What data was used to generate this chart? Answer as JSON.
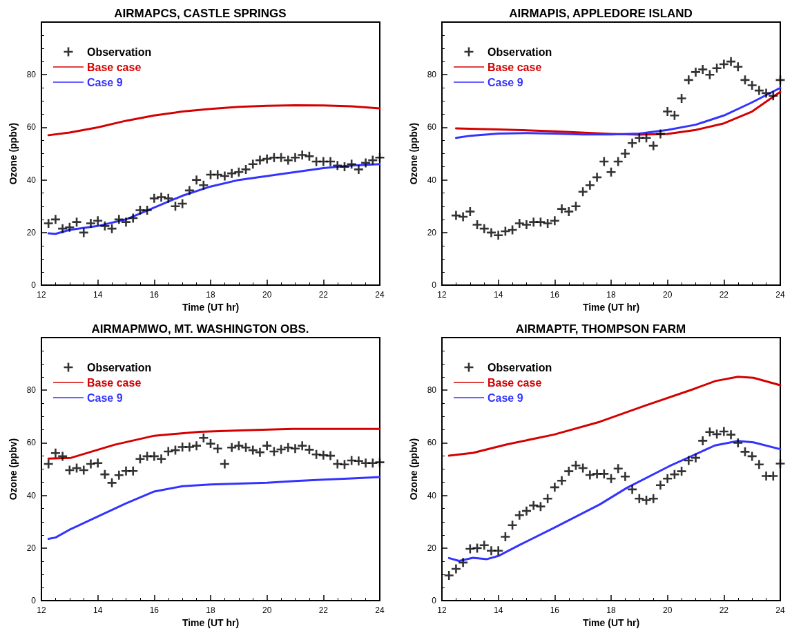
{
  "chart_data": [
    {
      "type": "line",
      "title": "AIRMAPCS, CASTLE SPRINGS",
      "xlabel": "Time (UT hr)",
      "ylabel": "Ozone (ppbv)",
      "xlim": [
        12,
        24
      ],
      "xticks": [
        12,
        14,
        16,
        18,
        20,
        22,
        24
      ],
      "ylim": [
        0,
        100
      ],
      "yticks": [
        0,
        20,
        40,
        60,
        80
      ],
      "legend": "top left",
      "grid": false,
      "series": [
        {
          "name": "Observation",
          "type": "scatter",
          "marker": "cross",
          "color": "#000000",
          "x": [
            12.25,
            12.5,
            12.75,
            13,
            13.25,
            13.5,
            13.75,
            14,
            14.25,
            14.5,
            14.75,
            15,
            15.25,
            15.5,
            15.75,
            16,
            16.25,
            16.5,
            16.75,
            17,
            17.25,
            17.5,
            17.75,
            18,
            18.25,
            18.5,
            18.75,
            19,
            19.25,
            19.5,
            19.75,
            20,
            20.25,
            20.5,
            20.75,
            21,
            21.25,
            21.5,
            21.75,
            22,
            22.25,
            22.5,
            22.75,
            23,
            23.25,
            23.5,
            23.75,
            24
          ],
          "values": [
            23.5,
            25,
            21.5,
            22,
            24,
            20,
            23.5,
            24.5,
            22.5,
            21.5,
            25,
            24,
            25.5,
            28.5,
            28.5,
            33,
            33.5,
            33,
            30,
            31,
            36,
            40,
            38,
            42,
            42,
            41.5,
            42.5,
            43,
            44,
            46,
            47.5,
            48,
            48.5,
            48.5,
            47.5,
            48.5,
            49.5,
            49,
            47,
            47,
            47,
            45.5,
            45,
            46,
            44,
            46.5,
            47.5,
            48.5
          ]
        },
        {
          "name": "Base case",
          "type": "line",
          "color": "#d40000",
          "x": [
            12.25,
            13,
            14,
            15,
            16,
            17,
            18,
            19,
            20,
            21,
            22,
            23,
            24
          ],
          "values": [
            57,
            58,
            60,
            62.5,
            64.5,
            66,
            67,
            67.8,
            68.2,
            68.4,
            68.3,
            68,
            67.2
          ]
        },
        {
          "name": "Case 9",
          "type": "line",
          "color": "#3333ff",
          "x": [
            12.25,
            12.5,
            13,
            14,
            15,
            16,
            17,
            18,
            19,
            20,
            21,
            22,
            23,
            24
          ],
          "values": [
            19.7,
            19.5,
            21,
            22.5,
            25,
            29.5,
            34,
            37.5,
            40,
            41.5,
            43,
            44.5,
            45.5,
            46
          ]
        }
      ]
    },
    {
      "type": "line",
      "title": "AIRMAPIS, APPLEDORE ISLAND",
      "xlabel": "Time (UT hr)",
      "ylabel": "Ozone (ppbv)",
      "xlim": [
        12,
        24
      ],
      "xticks": [
        12,
        14,
        16,
        18,
        20,
        22,
        24
      ],
      "ylim": [
        0,
        100
      ],
      "yticks": [
        0,
        20,
        40,
        60,
        80
      ],
      "legend": "top left",
      "grid": false,
      "series": [
        {
          "name": "Observation",
          "type": "scatter",
          "marker": "cross",
          "color": "#000000",
          "x": [
            12.5,
            12.75,
            13,
            13.25,
            13.5,
            13.75,
            14,
            14.25,
            14.5,
            14.75,
            15,
            15.25,
            15.5,
            15.75,
            16,
            16.25,
            16.5,
            16.75,
            17,
            17.25,
            17.5,
            17.75,
            18,
            18.25,
            18.5,
            18.75,
            19,
            19.25,
            19.5,
            19.75,
            20,
            20.25,
            20.5,
            20.75,
            21,
            21.25,
            21.5,
            21.75,
            22,
            22.25,
            22.5,
            22.75,
            23,
            23.25,
            23.5,
            23.75,
            24
          ],
          "values": [
            26.5,
            26,
            28,
            23,
            21.5,
            20,
            19,
            20.5,
            21,
            23.5,
            23,
            24,
            24,
            23.5,
            24.5,
            29,
            28,
            30,
            35.5,
            38,
            41,
            47,
            43,
            47,
            50,
            54,
            56,
            56,
            53,
            57.5,
            66,
            64.5,
            71,
            78,
            81,
            82,
            80,
            82.5,
            84,
            85,
            83,
            78,
            76,
            74,
            73,
            72,
            78
          ]
        },
        {
          "name": "Base case",
          "type": "line",
          "color": "#d40000",
          "x": [
            12.5,
            14,
            16,
            18,
            19,
            20,
            21,
            22,
            23,
            24
          ],
          "values": [
            59.6,
            59.2,
            58.5,
            57.5,
            57.2,
            57.5,
            59,
            61.5,
            66,
            73.5
          ]
        },
        {
          "name": "Case 9",
          "type": "line",
          "color": "#3333ff",
          "x": [
            12.5,
            13,
            14,
            15,
            16,
            17,
            18,
            19,
            20,
            21,
            22,
            23,
            24
          ],
          "values": [
            56,
            56.8,
            57.6,
            57.8,
            57.6,
            57.3,
            57.3,
            57.6,
            59,
            61,
            64.5,
            69.5,
            75
          ]
        }
      ]
    },
    {
      "type": "line",
      "title": "AIRMAPMWO, MT. WASHINGTON OBS.",
      "xlabel": "Time (UT hr)",
      "ylabel": "Ozone (ppbv)",
      "xlim": [
        12,
        24
      ],
      "xticks": [
        12,
        14,
        16,
        18,
        20,
        22,
        24
      ],
      "ylim": [
        0,
        100
      ],
      "yticks": [
        0,
        20,
        40,
        60,
        80
      ],
      "legend": "top left",
      "grid": false,
      "series": [
        {
          "name": "Observation",
          "type": "scatter",
          "marker": "cross",
          "color": "#000000",
          "x": [
            12.25,
            12.5,
            12.75,
            13,
            13.25,
            13.5,
            13.75,
            14,
            14.25,
            14.5,
            14.75,
            15,
            15.25,
            15.5,
            15.75,
            16,
            16.25,
            16.5,
            16.75,
            17,
            17.25,
            17.5,
            17.75,
            18,
            18.25,
            18.5,
            18.75,
            19,
            19.25,
            19.5,
            19.75,
            20,
            20.25,
            20.5,
            20.75,
            21,
            21.25,
            21.5,
            21.75,
            22,
            22.25,
            22.5,
            22.75,
            23,
            23.25,
            23.5,
            23.75,
            24
          ],
          "values": [
            52,
            56.1,
            54.9,
            49.6,
            50.4,
            49.6,
            52,
            52.3,
            48,
            44.8,
            47.7,
            49.3,
            49.3,
            53.9,
            54.9,
            54.9,
            53.9,
            56.7,
            57.2,
            58.4,
            58.4,
            58.9,
            61.9,
            59.7,
            57.8,
            52,
            58.2,
            58.9,
            58.2,
            57.2,
            56.4,
            58.9,
            56.7,
            57.5,
            58.2,
            57.8,
            58.9,
            57.4,
            55.6,
            55.3,
            55.1,
            52,
            51.8,
            53.3,
            53.1,
            52.3,
            52.3,
            52.6
          ]
        },
        {
          "name": "Base case",
          "type": "line",
          "color": "#d40000",
          "x": [
            12.25,
            13.05,
            14.6,
            16,
            17.6,
            19.2,
            20.9,
            22.5,
            24
          ],
          "values": [
            54,
            54.3,
            59.3,
            62.7,
            64.2,
            64.8,
            65.3,
            65.3,
            65.3
          ]
        },
        {
          "name": "Case 9",
          "type": "line",
          "color": "#3333ff",
          "x": [
            12.25,
            12.5,
            13,
            14,
            15,
            16,
            17,
            18,
            19,
            20,
            21,
            22,
            23,
            24
          ],
          "values": [
            23.5,
            24,
            27,
            32,
            37,
            41.5,
            43.5,
            44.2,
            44.5,
            44.8,
            45.5,
            46,
            46.5,
            47
          ]
        }
      ]
    },
    {
      "type": "line",
      "title": "AIRMAPTF, THOMPSON FARM",
      "xlabel": "Time (UT hr)",
      "ylabel": "Ozone (ppbv)",
      "xlim": [
        12,
        24
      ],
      "xticks": [
        12,
        14,
        16,
        18,
        20,
        22,
        24
      ],
      "ylim": [
        0,
        100
      ],
      "yticks": [
        0,
        20,
        40,
        60,
        80
      ],
      "legend": "top left",
      "grid": false,
      "series": [
        {
          "name": "Observation",
          "type": "scatter",
          "marker": "cross",
          "color": "#000000",
          "x": [
            12.25,
            12.5,
            12.75,
            13,
            13.25,
            13.5,
            13.75,
            14,
            14.25,
            14.5,
            14.75,
            15,
            15.25,
            15.5,
            15.75,
            16,
            16.25,
            16.5,
            16.75,
            17,
            17.25,
            17.5,
            17.75,
            18,
            18.25,
            18.5,
            18.75,
            19,
            19.25,
            19.5,
            19.75,
            20,
            20.25,
            20.5,
            20.75,
            21,
            21.25,
            21.5,
            21.75,
            22,
            22.25,
            22.5,
            22.75,
            23,
            23.25,
            23.5,
            23.75,
            24
          ],
          "values": [
            9.6,
            12.1,
            14.5,
            19.7,
            20,
            21.1,
            19,
            19,
            24.3,
            28.7,
            32.5,
            34.1,
            36.2,
            35.8,
            38.8,
            43.1,
            45.6,
            49.2,
            51.4,
            50.4,
            47.8,
            48.2,
            48.2,
            46.4,
            50.2,
            47.2,
            42.3,
            38.8,
            38.2,
            38.8,
            43.9,
            46.4,
            48,
            49.2,
            53.3,
            54.3,
            60.8,
            64.1,
            63.3,
            64.3,
            63.1,
            60,
            56.6,
            54.9,
            51.8,
            47.4,
            47.4,
            52.1
          ]
        },
        {
          "name": "Base case",
          "type": "line",
          "color": "#d40000",
          "x": [
            12.25,
            13.1,
            14.3,
            15.96,
            17.6,
            19.2,
            20.86,
            21.7,
            22.5,
            23.05,
            24
          ],
          "values": [
            55.1,
            56.2,
            59.4,
            63.1,
            68,
            74.1,
            80.2,
            83.5,
            85.1,
            84.7,
            81.9
          ]
        },
        {
          "name": "Case 9",
          "type": "line",
          "color": "#3333ff",
          "x": [
            12.25,
            12.61,
            13.1,
            13.6,
            14,
            14.74,
            15.96,
            17.6,
            18.56,
            20.04,
            20.86,
            21.68,
            22.5,
            23.05,
            24
          ],
          "values": [
            16.2,
            15.1,
            16.3,
            15.8,
            17,
            21.1,
            27.6,
            36.6,
            42.9,
            51,
            55,
            59,
            60.7,
            60.2,
            57.6
          ]
        }
      ]
    }
  ]
}
